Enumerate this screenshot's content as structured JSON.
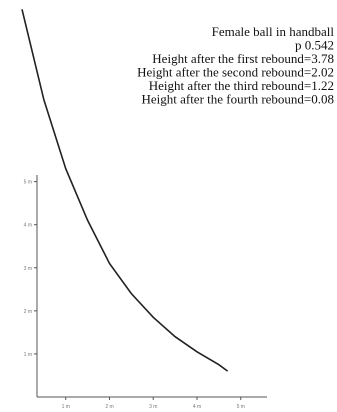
{
  "chart_data": {
    "type": "line",
    "annotations": [
      "Female ball in handball",
      "p 0.542",
      "Height after the first rebound=3.78",
      "Height after the second rebound=2.02",
      "Height after the third rebound=1.22",
      "Height after the fourth rebound=0.08"
    ],
    "x": [
      0,
      0.5,
      1,
      1.5,
      2,
      2.5,
      3,
      3.5,
      4,
      4.5,
      4.7
    ],
    "series": [
      {
        "color": "#222222",
        "values": [
          9.0,
          6.9,
          5.3,
          4.1,
          3.1,
          2.4,
          1.85,
          1.4,
          1.05,
          0.75,
          0.6
        ]
      }
    ],
    "xlim": [
      0,
      5.6
    ],
    "ylim": [
      0,
      9.1
    ],
    "xticks": [
      {
        "value": 1,
        "label": "1 m"
      },
      {
        "value": 2,
        "label": "2 m"
      },
      {
        "value": 3,
        "label": "3 m"
      },
      {
        "value": 4,
        "label": "4 m"
      },
      {
        "value": 5,
        "label": "5 m"
      }
    ],
    "yticks": [
      {
        "value": 1,
        "label": "1 m"
      },
      {
        "value": 2,
        "label": "2 m"
      },
      {
        "value": 3,
        "label": "3 m"
      },
      {
        "value": 4,
        "label": "4 m"
      },
      {
        "value": 5,
        "label": "5 m"
      }
    ]
  }
}
